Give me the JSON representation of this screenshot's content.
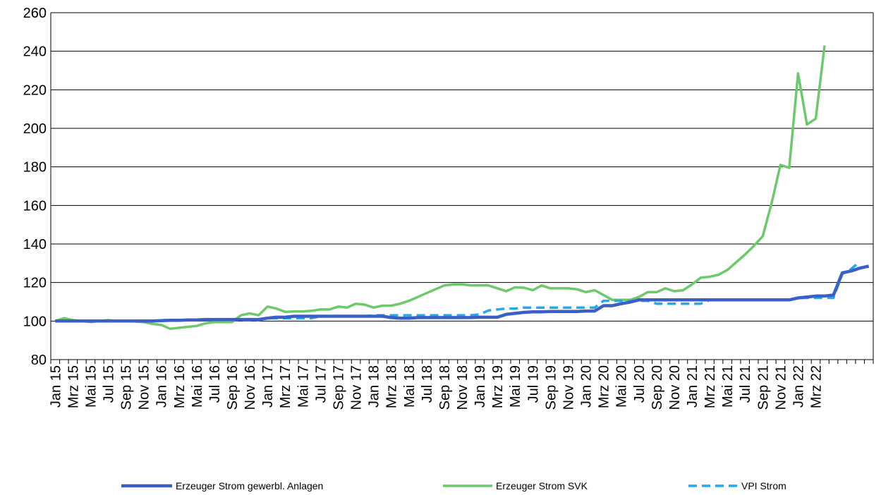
{
  "chart_data": {
    "type": "line",
    "title": "",
    "xlabel": "",
    "ylabel": "",
    "ylim": [
      80,
      260
    ],
    "yticks": [
      80,
      100,
      120,
      140,
      160,
      180,
      200,
      220,
      240,
      260
    ],
    "grid": "horizontal",
    "legend_position": "bottom",
    "x_tick_labels": [
      "Jan 15",
      "Mrz 15",
      "Mai 15",
      "Jul 15",
      "Sep 15",
      "Nov 15",
      "Jan 16",
      "Mrz 16",
      "Mai 16",
      "Jul 16",
      "Sep 16",
      "Nov 16",
      "Jan 17",
      "Mrz 17",
      "Mai 17",
      "Jul 17",
      "Sep 17",
      "Nov 17",
      "Jan 18",
      "Mrz 18",
      "Mai 18",
      "Jul 18",
      "Sep 18",
      "Nov 18",
      "Jan 19",
      "Mrz 19",
      "Mai 19",
      "Jul 19",
      "Sep 19",
      "Nov 19",
      "Jan 20",
      "Mrz 20",
      "Mai 20",
      "Jul 20",
      "Sep 20",
      "Nov 20",
      "Jan 21",
      "Mrz 21",
      "Mai 21",
      "Jul 21",
      "Sep 21",
      "Nov 21",
      "Jan 22",
      "Mrz 22"
    ],
    "series": [
      {
        "name": "Erzeuger Strom gewerbl. Anlagen",
        "color": "#3a5fc8",
        "style": "solid-thick",
        "values": [
          100,
          100,
          100,
          100,
          100,
          100,
          100,
          100,
          100,
          100,
          100,
          100,
          100.2,
          100.4,
          100.4,
          100.6,
          100.6,
          100.8,
          100.8,
          100.8,
          100.8,
          100.8,
          100.8,
          100.8,
          101.5,
          102,
          102,
          102.5,
          102.5,
          102.5,
          102.5,
          102.5,
          102.5,
          102.5,
          102.5,
          102.5,
          102.5,
          102.5,
          101.8,
          101.5,
          101.5,
          101.8,
          101.8,
          101.8,
          101.8,
          101.8,
          101.8,
          101.8,
          102,
          102,
          102,
          103.5,
          104,
          104.5,
          104.8,
          104.8,
          105,
          105,
          105,
          105,
          105.2,
          105.2,
          108,
          108,
          109,
          109.8,
          111,
          111,
          111,
          111,
          111,
          111,
          111,
          111,
          111,
          111,
          111,
          111,
          111,
          111,
          111,
          111,
          111,
          111,
          112,
          112.5,
          113,
          113,
          113.5,
          125,
          126,
          127.5,
          128.5
        ]
      },
      {
        "name": "Erzeuger Strom SVK",
        "color": "#6cc96c",
        "style": "solid",
        "values": [
          100,
          101.5,
          100.5,
          100,
          99.5,
          100,
          100.5,
          100,
          100,
          99.8,
          99.5,
          98.5,
          98,
          96,
          96.5,
          97,
          97.5,
          98.8,
          99.5,
          99.5,
          99.5,
          103,
          104,
          103,
          107.5,
          106.5,
          104.8,
          105,
          105,
          105.3,
          106,
          106,
          107.5,
          107,
          109,
          108.5,
          107,
          108,
          108,
          109,
          110.5,
          112.5,
          114.5,
          116.5,
          118.5,
          119,
          119,
          118.5,
          118.5,
          118.5,
          117,
          115.5,
          117.5,
          117.3,
          116,
          118.5,
          117,
          117,
          117,
          116.5,
          115,
          116,
          113.5,
          111,
          111,
          111,
          112.5,
          115,
          115,
          117,
          115.5,
          116,
          119,
          122.5,
          123,
          124,
          126.5,
          130.5,
          134.5,
          139,
          144,
          161,
          181,
          179.5,
          228.5,
          202,
          205,
          243
        ]
      },
      {
        "name": "VPI Strom",
        "color": "#22aaee",
        "style": "dashed",
        "values": [
          100,
          100,
          100,
          100,
          100,
          100,
          100,
          100,
          100,
          100,
          100,
          100,
          100.5,
          100.5,
          100.5,
          100.5,
          100.5,
          100.5,
          100.5,
          100.5,
          100.5,
          100.5,
          100.5,
          100.5,
          101.5,
          101.5,
          101.5,
          101.5,
          101.5,
          101.5,
          102.5,
          102.5,
          102.5,
          102.5,
          102.5,
          102.5,
          103,
          103,
          103,
          103,
          103,
          103,
          103,
          103,
          103,
          103,
          103,
          103,
          103.5,
          105.5,
          106,
          106.5,
          106.5,
          107,
          107,
          107,
          107,
          107,
          107,
          107,
          107,
          107,
          110.5,
          110.5,
          110.5,
          110.5,
          110.5,
          110.5,
          109,
          109,
          109,
          109,
          109,
          109,
          111,
          111,
          111,
          111,
          111,
          111,
          111,
          111,
          111,
          111,
          112,
          112,
          112,
          112,
          112,
          124.5,
          127,
          131
        ]
      }
    ]
  }
}
